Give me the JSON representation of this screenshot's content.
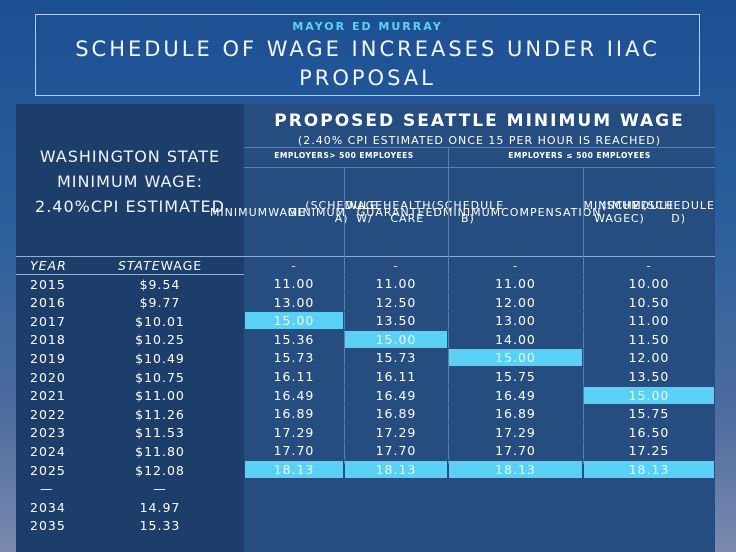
{
  "header": {
    "supertitle": "MAYOR ED MURRAY",
    "title": "SCHEDULE OF WAGE INCREASES UNDER IIAC PROPOSAL"
  },
  "left": {
    "heading": [
      "WASHINGTON STATE",
      "MINIMUM WAGE:",
      "2.40%CPI ESTIMATED"
    ],
    "col_year": "YEAR",
    "col_state_italic": "STATE",
    "col_state_rest": " WAGE"
  },
  "right": {
    "title": "PROPOSED SEATTLE MINIMUM WAGE",
    "subtitle": "(2.40% CPI ESTIMATED ONCE 15 PER HOUR IS REACHED)",
    "group_a": "EMPLOYERS> 500 EMPLOYEES",
    "group_b": "EMPLOYERS ≤ 500 EMPLOYEES",
    "columns": [
      [
        "MINIMUM",
        "WAGE",
        "(SCHEDULE A)"
      ],
      [
        "MINIMUM",
        "WAGE W/",
        "HEALTH CARE",
        "(SCHEDULE B)"
      ],
      [
        "GUARANTEED",
        "MINIMUM",
        "COMPENSATION",
        "(SCHEDULE C)"
      ],
      [
        "MINIMUM WAGE",
        "(SCHEDULE D)"
      ]
    ]
  },
  "highlight_color": "#5ad0f5",
  "rows": [
    {
      "year": "2015",
      "state": "$9.54",
      "a": "11.00",
      "b": "11.00",
      "c": "11.00",
      "d": "10.00"
    },
    {
      "year": "2016",
      "state": "$9.77",
      "a": "13.00",
      "b": "12.50",
      "c": "12.00",
      "d": "10.50"
    },
    {
      "year": "2017",
      "state": "$10.01",
      "a": "15.00",
      "b": "13.50",
      "c": "13.00",
      "d": "11.00",
      "hl": "a"
    },
    {
      "year": "2018",
      "state": "$10.25",
      "a": "15.36",
      "b": "15.00",
      "c": "14.00",
      "d": "11.50",
      "hl": "b"
    },
    {
      "year": "2019",
      "state": "$10.49",
      "a": "15.73",
      "b": "15.73",
      "c": "15.00",
      "d": "12.00",
      "hl": "c"
    },
    {
      "year": "2020",
      "state": "$10.75",
      "a": "16.11",
      "b": "16.11",
      "c": "15.75",
      "d": "13.50"
    },
    {
      "year": "2021",
      "state": "$11.00",
      "a": "16.49",
      "b": "16.49",
      "c": "16.49",
      "d": "15.00",
      "hl": "d"
    },
    {
      "year": "2022",
      "state": "$11.26",
      "a": "16.89",
      "b": "16.89",
      "c": "16.89",
      "d": "15.75"
    },
    {
      "year": "2023",
      "state": "$11.53",
      "a": "17.29",
      "b": "17.29",
      "c": "17.29",
      "d": "16.50"
    },
    {
      "year": "2024",
      "state": "$11.80",
      "a": "17.70",
      "b": "17.70",
      "c": "17.70",
      "d": "17.25"
    },
    {
      "year": "2025",
      "state": "$12.08",
      "a": "18.13",
      "b": "18.13",
      "c": "18.13",
      "d": "18.13",
      "hl": "all"
    },
    {
      "year": "—",
      "state": "—"
    },
    {
      "year": "2034",
      "state": "14.97"
    },
    {
      "year": "2035",
      "state": "15.33"
    }
  ],
  "dash": "-"
}
